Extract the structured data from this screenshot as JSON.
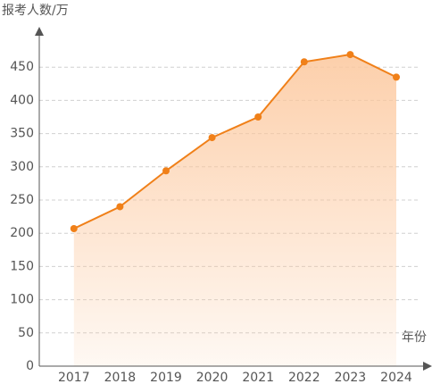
{
  "chart_data": {
    "type": "line",
    "y_label": "报考人数/万",
    "x_label": "年份",
    "categories": [
      "2017",
      "2018",
      "2019",
      "2020",
      "2021",
      "2022",
      "2023",
      "2024"
    ],
    "values": [
      207,
      240,
      294,
      344,
      375,
      458,
      469,
      435
    ],
    "color": "#f08019",
    "area_color": "#fcc79c",
    "ylim": [
      0,
      500
    ],
    "yticks": [
      0,
      50,
      100,
      150,
      200,
      250,
      300,
      350,
      400,
      450
    ],
    "grid": true
  }
}
